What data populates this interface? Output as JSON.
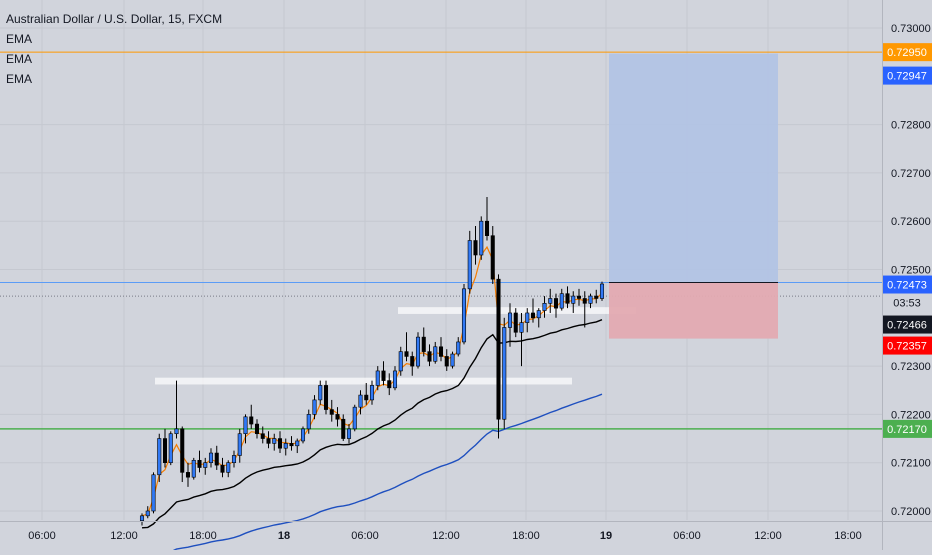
{
  "title": "Australian Dollar / U.S. Dollar, 15, FXCM",
  "indicators": [
    "EMA",
    "EMA",
    "EMA"
  ],
  "chart_data": {
    "type": "candlestick",
    "symbol": "AUDUSD",
    "timeframe": "15",
    "ylim": [
      0.7197,
      0.7308
    ],
    "y_ticks": [
      "0.73000",
      "0.72800",
      "0.72700",
      "0.72600",
      "0.72500",
      "0.72300",
      "0.72200",
      "0.72100",
      "0.72000"
    ],
    "x_ticks": [
      "06:00",
      "12:00",
      "18:00",
      "18",
      "06:00",
      "12:00",
      "18:00",
      "19",
      "06:00",
      "12:00",
      "18:00"
    ],
    "price_labels": [
      {
        "value": "0.72950",
        "color": "#ff9800",
        "role": "target"
      },
      {
        "value": "0.72947",
        "color": "#2962ff",
        "role": "target-box"
      },
      {
        "value": "0.72473",
        "color": "#2962ff",
        "role": "entry"
      },
      {
        "value": "03:53",
        "color": "#d1d4dc",
        "role": "countdown"
      },
      {
        "value": "0.72466",
        "color": "#131722",
        "role": "last-price"
      },
      {
        "value": "0.72357",
        "color": "#ff0000",
        "role": "stop"
      },
      {
        "value": "0.72170",
        "color": "#4caf50",
        "role": "support"
      }
    ],
    "levels": [
      {
        "price": 0.7295,
        "color": "#ff9800"
      },
      {
        "price": 0.72473,
        "color": "#5b9cf6"
      },
      {
        "price": 0.7217,
        "color": "#4caf50"
      }
    ],
    "position": {
      "entry": 0.72473,
      "target": 0.72947,
      "stop": 0.72357
    },
    "ohlc": [
      [
        0.7198,
        0.71995,
        0.7197,
        0.7199
      ],
      [
        0.7199,
        0.7201,
        0.71985,
        0.72
      ],
      [
        0.72,
        0.7208,
        0.71995,
        0.72075
      ],
      [
        0.72075,
        0.7216,
        0.7206,
        0.7215
      ],
      [
        0.7215,
        0.7217,
        0.7209,
        0.721
      ],
      [
        0.721,
        0.72165,
        0.72095,
        0.7216
      ],
      [
        0.7216,
        0.7227,
        0.7215,
        0.7217
      ],
      [
        0.7217,
        0.72175,
        0.7206,
        0.7208
      ],
      [
        0.7208,
        0.721,
        0.7205,
        0.7207
      ],
      [
        0.7207,
        0.7211,
        0.72065,
        0.72105
      ],
      [
        0.72105,
        0.72125,
        0.7208,
        0.7209
      ],
      [
        0.7209,
        0.7211,
        0.72075,
        0.721
      ],
      [
        0.721,
        0.7213,
        0.7209,
        0.7212
      ],
      [
        0.7212,
        0.72135,
        0.72085,
        0.72095
      ],
      [
        0.72095,
        0.7211,
        0.7207,
        0.7208
      ],
      [
        0.7208,
        0.72105,
        0.7207,
        0.721
      ],
      [
        0.721,
        0.72125,
        0.7209,
        0.72115
      ],
      [
        0.72115,
        0.7217,
        0.721,
        0.7216
      ],
      [
        0.7216,
        0.722,
        0.7214,
        0.72195
      ],
      [
        0.72195,
        0.7222,
        0.7217,
        0.7218
      ],
      [
        0.7218,
        0.7219,
        0.7215,
        0.7216
      ],
      [
        0.7216,
        0.72175,
        0.7214,
        0.7215
      ],
      [
        0.7215,
        0.72165,
        0.7213,
        0.7214
      ],
      [
        0.7214,
        0.7216,
        0.72125,
        0.7215
      ],
      [
        0.7215,
        0.72165,
        0.7212,
        0.7213
      ],
      [
        0.7213,
        0.7215,
        0.72115,
        0.7214
      ],
      [
        0.7214,
        0.72155,
        0.72125,
        0.72135
      ],
      [
        0.72135,
        0.7215,
        0.7212,
        0.72145
      ],
      [
        0.72145,
        0.72175,
        0.7214,
        0.7217
      ],
      [
        0.7217,
        0.7221,
        0.7216,
        0.722
      ],
      [
        0.722,
        0.7224,
        0.7219,
        0.7223
      ],
      [
        0.7223,
        0.7227,
        0.7222,
        0.7226
      ],
      [
        0.7226,
        0.7227,
        0.722,
        0.7221
      ],
      [
        0.7221,
        0.7223,
        0.72185,
        0.722
      ],
      [
        0.722,
        0.72215,
        0.72175,
        0.7219
      ],
      [
        0.7219,
        0.722,
        0.72145,
        0.7215
      ],
      [
        0.7215,
        0.7218,
        0.7214,
        0.7217
      ],
      [
        0.7217,
        0.7222,
        0.72165,
        0.72215
      ],
      [
        0.72215,
        0.7225,
        0.722,
        0.7224
      ],
      [
        0.7224,
        0.72265,
        0.7222,
        0.7223
      ],
      [
        0.7223,
        0.7227,
        0.7222,
        0.7226
      ],
      [
        0.7226,
        0.723,
        0.7225,
        0.7229
      ],
      [
        0.7229,
        0.7231,
        0.7226,
        0.7227
      ],
      [
        0.7227,
        0.72285,
        0.7224,
        0.72255
      ],
      [
        0.72255,
        0.723,
        0.7225,
        0.7229
      ],
      [
        0.7229,
        0.7234,
        0.7228,
        0.7233
      ],
      [
        0.7233,
        0.7237,
        0.7231,
        0.7232
      ],
      [
        0.7232,
        0.7233,
        0.7228,
        0.723
      ],
      [
        0.723,
        0.7237,
        0.72295,
        0.7236
      ],
      [
        0.7236,
        0.7238,
        0.7232,
        0.7233
      ],
      [
        0.7233,
        0.72345,
        0.723,
        0.7231
      ],
      [
        0.7231,
        0.7235,
        0.72305,
        0.7234
      ],
      [
        0.7234,
        0.7236,
        0.7231,
        0.7232
      ],
      [
        0.7232,
        0.72335,
        0.7229,
        0.723
      ],
      [
        0.723,
        0.7233,
        0.72295,
        0.72325
      ],
      [
        0.72325,
        0.7236,
        0.7232,
        0.7235
      ],
      [
        0.7235,
        0.7247,
        0.72345,
        0.7246
      ],
      [
        0.7246,
        0.7258,
        0.7245,
        0.7256
      ],
      [
        0.7256,
        0.7259,
        0.7251,
        0.7253
      ],
      [
        0.7253,
        0.7261,
        0.7252,
        0.726
      ],
      [
        0.726,
        0.7265,
        0.7256,
        0.7257
      ],
      [
        0.7257,
        0.7259,
        0.7247,
        0.7248
      ],
      [
        0.7248,
        0.7249,
        0.7215,
        0.7219
      ],
      [
        0.7219,
        0.724,
        0.7217,
        0.7238
      ],
      [
        0.7238,
        0.7243,
        0.7234,
        0.7241
      ],
      [
        0.7241,
        0.7242,
        0.7236,
        0.7237
      ],
      [
        0.7237,
        0.7241,
        0.723,
        0.7239
      ],
      [
        0.7239,
        0.7242,
        0.7237,
        0.7241
      ],
      [
        0.7241,
        0.7244,
        0.7239,
        0.724
      ],
      [
        0.724,
        0.7242,
        0.7238,
        0.72415
      ],
      [
        0.72415,
        0.72445,
        0.724,
        0.7243
      ],
      [
        0.7243,
        0.7246,
        0.7241,
        0.7244
      ],
      [
        0.7244,
        0.7245,
        0.724,
        0.7242
      ],
      [
        0.7242,
        0.7246,
        0.72415,
        0.7245
      ],
      [
        0.7245,
        0.72465,
        0.7242,
        0.7243
      ],
      [
        0.7243,
        0.72455,
        0.7241,
        0.72445
      ],
      [
        0.72445,
        0.7246,
        0.72425,
        0.7244
      ],
      [
        0.7244,
        0.72455,
        0.7238,
        0.7243
      ],
      [
        0.7243,
        0.7245,
        0.7242,
        0.72445
      ],
      [
        0.72445,
        0.72458,
        0.7243,
        0.7244
      ],
      [
        0.7244,
        0.72475,
        0.72435,
        0.7247
      ]
    ],
    "zones": [
      {
        "from": 0.72408,
        "to": 0.72422
      },
      {
        "from": 0.72262,
        "to": 0.72276
      }
    ]
  }
}
